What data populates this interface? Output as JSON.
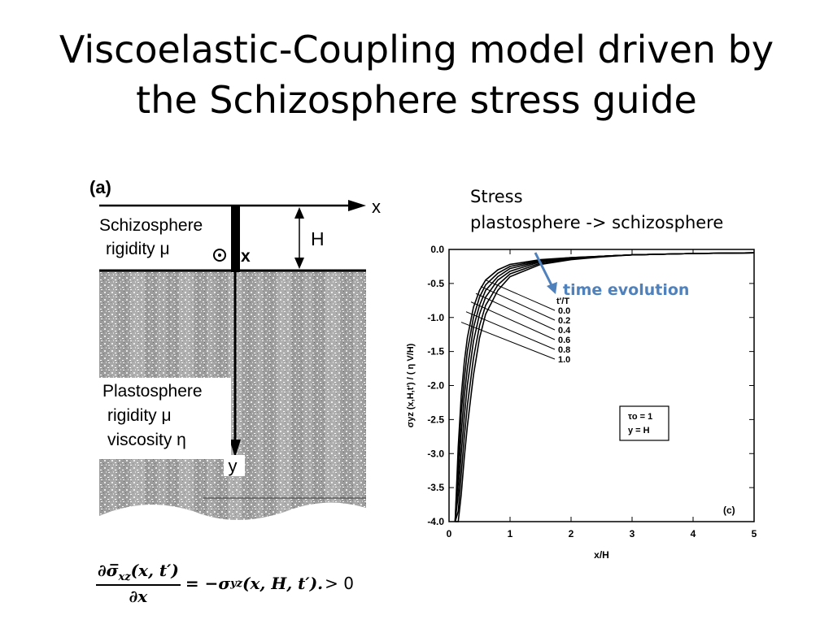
{
  "slide": {
    "title_line1": "Viscoelastic-Coupling model driven by",
    "title_line2": "the Schizosphere stress guide",
    "stress_line1": "Stress",
    "stress_line2": "plastosphere -> schizosphere",
    "time_evolution": "time evolution"
  },
  "figure_a": {
    "panel_label": "(a)",
    "x_axis": "x",
    "y_axis": "y",
    "thickness_label": "H",
    "upper_layer_name": "Schizosphere",
    "upper_layer_prop": "rigidity μ",
    "out_of_plane_label": "x",
    "lower_layer_name": "Plastosphere",
    "lower_layer_prop1": "rigidity μ",
    "lower_layer_prop2": "viscosity η"
  },
  "equation": {
    "numerator": "∂σ̅",
    "numerator_sub": "xz",
    "numerator_args": "(x, t′)",
    "denominator": "∂x",
    "rhs": "= −σ",
    "rhs_sub": "yz",
    "rhs_args": "(x, H, t′).",
    "tail": "> 0"
  },
  "chart_data": {
    "type": "line",
    "panel_label": "(c)",
    "xlabel": "x/H",
    "ylabel": "σyz (x,H,t') / ( η V/H)",
    "xlim": [
      0,
      5
    ],
    "ylim": [
      -4.0,
      0.0
    ],
    "x_ticks": [
      "0",
      "1",
      "2",
      "3",
      "4",
      "5"
    ],
    "y_ticks": [
      "0.0",
      "-0.5",
      "-1.0",
      "-1.5",
      "-2.0",
      "-2.5",
      "-3.0",
      "-3.5",
      "-4.0"
    ],
    "legend_title": "t'/T",
    "param_box": [
      "τo = 1",
      "y = H"
    ],
    "x": [
      0.1,
      0.15,
      0.2,
      0.25,
      0.3,
      0.4,
      0.5,
      0.6,
      0.8,
      1.0,
      1.5,
      2.0,
      2.5,
      3.0,
      4.0,
      5.0
    ],
    "series": [
      {
        "name": "0.0",
        "values": [
          -4.0,
          -2.9,
          -2.15,
          -1.65,
          -1.3,
          -0.85,
          -0.6,
          -0.45,
          -0.3,
          -0.22,
          -0.15,
          -0.12,
          -0.1,
          -0.08,
          -0.06,
          -0.05
        ]
      },
      {
        "name": "0.2",
        "values": [
          -4.0,
          -3.1,
          -2.4,
          -1.9,
          -1.5,
          -1.0,
          -0.7,
          -0.52,
          -0.35,
          -0.25,
          -0.16,
          -0.12,
          -0.1,
          -0.08,
          -0.06,
          -0.05
        ]
      },
      {
        "name": "0.4",
        "values": [
          -4.0,
          -3.35,
          -2.7,
          -2.15,
          -1.75,
          -1.15,
          -0.82,
          -0.6,
          -0.4,
          -0.28,
          -0.17,
          -0.13,
          -0.1,
          -0.08,
          -0.06,
          -0.05
        ]
      },
      {
        "name": "0.6",
        "values": [
          -4.0,
          -3.6,
          -3.0,
          -2.45,
          -2.0,
          -1.35,
          -0.95,
          -0.7,
          -0.45,
          -0.32,
          -0.18,
          -0.13,
          -0.1,
          -0.08,
          -0.06,
          -0.05
        ]
      },
      {
        "name": "0.8",
        "values": [
          -4.0,
          -3.85,
          -3.3,
          -2.75,
          -2.3,
          -1.6,
          -1.12,
          -0.82,
          -0.52,
          -0.36,
          -0.2,
          -0.14,
          -0.1,
          -0.08,
          -0.06,
          -0.05
        ]
      },
      {
        "name": "1.0",
        "values": [
          -4.0,
          -4.0,
          -3.6,
          -3.05,
          -2.6,
          -1.85,
          -1.3,
          -0.95,
          -0.6,
          -0.4,
          -0.22,
          -0.15,
          -0.11,
          -0.08,
          -0.06,
          -0.05
        ]
      }
    ],
    "grid": false,
    "legend_position": "upper-middle, with leader lines to curves"
  },
  "colors": {
    "accent": "#4f81bd"
  }
}
